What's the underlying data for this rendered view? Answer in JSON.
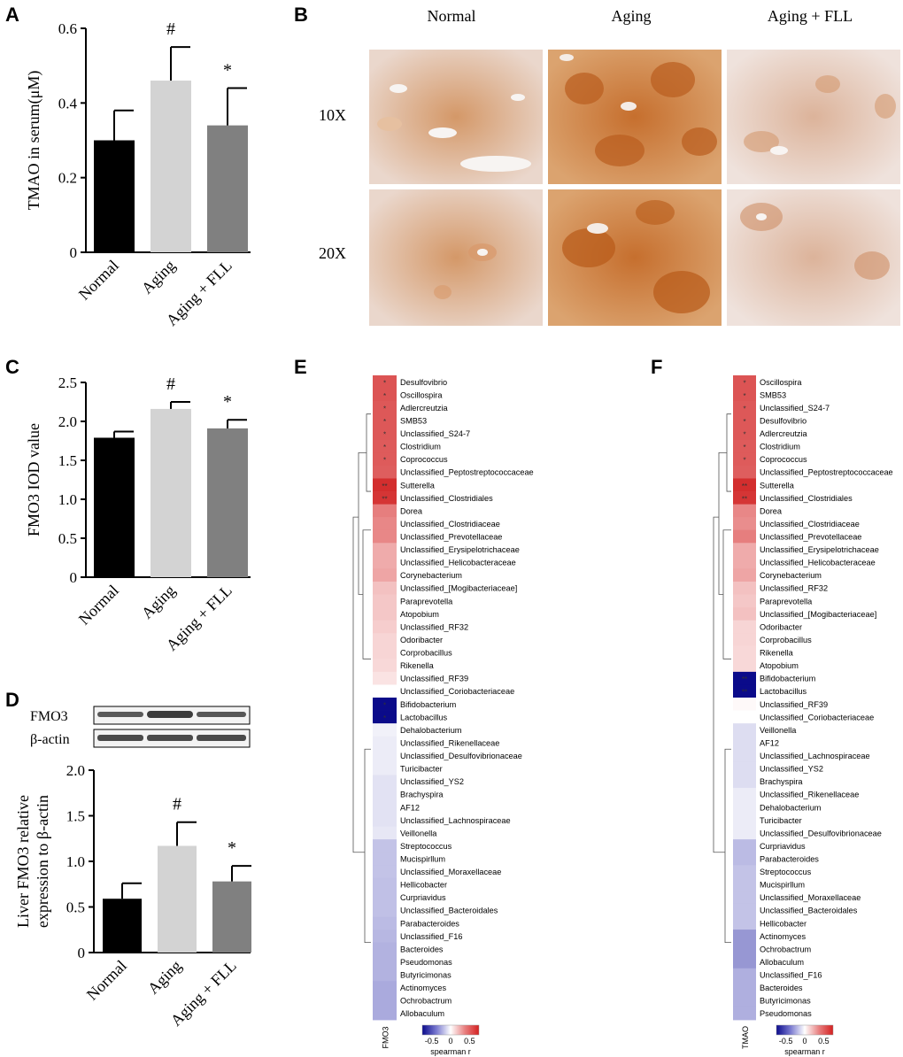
{
  "figure": {
    "panel_letters": {
      "a": "A",
      "b": "B",
      "c": "C",
      "d": "D",
      "e": "E",
      "f": "F"
    }
  },
  "groups": [
    "Normal",
    "Aging",
    "Aging + FLL"
  ],
  "colors": {
    "normal": "#000000",
    "aging": "#d3d3d3",
    "fll": "#808080"
  },
  "chart_data": [
    {
      "panel": "A",
      "type": "bar",
      "categories": [
        "Normal",
        "Aging",
        "Aging + FLL"
      ],
      "values": [
        0.3,
        0.46,
        0.34
      ],
      "errors": [
        0.08,
        0.09,
        0.1
      ],
      "annotations": [
        "",
        "#",
        "*"
      ],
      "title": "",
      "xlabel": "",
      "ylabel": "TMAO in serum(μM)",
      "ylim": [
        0,
        0.6
      ],
      "yticks": [
        0,
        0.2,
        0.4,
        0.6
      ],
      "ytick_labels": [
        "0",
        "0.2",
        "0.4",
        "0.6"
      ]
    },
    {
      "panel": "C",
      "type": "bar",
      "categories": [
        "Normal",
        "Aging",
        "Aging + FLL"
      ],
      "values": [
        1.79,
        2.16,
        1.91
      ],
      "errors": [
        0.08,
        0.09,
        0.11
      ],
      "annotations": [
        "",
        "#",
        "*"
      ],
      "title": "",
      "xlabel": "",
      "ylabel": "FMO3 IOD value",
      "ylim": [
        0,
        2.5
      ],
      "yticks": [
        0,
        0.5,
        1.0,
        1.5,
        2.0,
        2.5
      ],
      "ytick_labels": [
        "0",
        "0.5",
        "1.0",
        "1.5",
        "2.0",
        "2.5"
      ]
    },
    {
      "panel": "D",
      "type": "bar",
      "categories": [
        "Normal",
        "Aging",
        "Aging + FLL"
      ],
      "values": [
        0.59,
        1.17,
        0.78
      ],
      "errors": [
        0.17,
        0.26,
        0.17
      ],
      "annotations": [
        "",
        "#",
        "*"
      ],
      "title": "",
      "xlabel": "",
      "ylabel": "Liver FMO3 relative expression to β-actin",
      "ylabel_lines": [
        "Liver FMO3 relative",
        "expression to β-actin"
      ],
      "ylim": [
        0,
        2.0
      ],
      "yticks": [
        0,
        0.5,
        1.0,
        1.5,
        2.0
      ],
      "ytick_labels": [
        "0",
        "0.5",
        "1.0",
        "1.5",
        "2.0"
      ]
    },
    {
      "panel": "E",
      "type": "heatmap",
      "column_label": "FMO3",
      "colorbar": {
        "label": "spearman r",
        "ticks": [
          "-0.5",
          "0",
          "0.5"
        ],
        "range": [
          -0.75,
          0.75
        ]
      },
      "rows": [
        {
          "name": "Desulfovibrio",
          "r": 0.58,
          "sig": "*"
        },
        {
          "name": "Oscillospira",
          "r": 0.58,
          "sig": "*"
        },
        {
          "name": "Adlercreutzia",
          "r": 0.57,
          "sig": "*"
        },
        {
          "name": "SMB53",
          "r": 0.57,
          "sig": "*"
        },
        {
          "name": "Unclassified_S24-7",
          "r": 0.57,
          "sig": "*"
        },
        {
          "name": "Clostridium",
          "r": 0.56,
          "sig": "*"
        },
        {
          "name": "Coprococcus",
          "r": 0.56,
          "sig": "*"
        },
        {
          "name": "Unclassified_Peptostreptococcaceae",
          "r": 0.55,
          "sig": ""
        },
        {
          "name": "Sutterella",
          "r": 0.7,
          "sig": "**"
        },
        {
          "name": "Unclassified_Clostridiales",
          "r": 0.68,
          "sig": "**"
        },
        {
          "name": "Dorea",
          "r": 0.45,
          "sig": ""
        },
        {
          "name": "Unclassified_Clostridiaceae",
          "r": 0.42,
          "sig": ""
        },
        {
          "name": "Unclassified_Prevotellaceae",
          "r": 0.42,
          "sig": ""
        },
        {
          "name": "Unclassified_Erysipelotrichaceae",
          "r": 0.3,
          "sig": ""
        },
        {
          "name": "Unclassified_Helicobacteraceae",
          "r": 0.3,
          "sig": ""
        },
        {
          "name": "Corynebacterium",
          "r": 0.32,
          "sig": ""
        },
        {
          "name": "Unclassified_[Mogibacteriaceae]",
          "r": 0.22,
          "sig": ""
        },
        {
          "name": "Paraprevotella",
          "r": 0.2,
          "sig": ""
        },
        {
          "name": "Atopobium",
          "r": 0.2,
          "sig": ""
        },
        {
          "name": "Unclassified_RF32",
          "r": 0.18,
          "sig": ""
        },
        {
          "name": "Odoribacter",
          "r": 0.15,
          "sig": ""
        },
        {
          "name": "Corprobacillus",
          "r": 0.15,
          "sig": ""
        },
        {
          "name": "Rikenella",
          "r": 0.14,
          "sig": ""
        },
        {
          "name": "Unclassified_RF39",
          "r": 0.1,
          "sig": ""
        },
        {
          "name": "Unclassified_Coriobacteriaceae",
          "r": 0.0,
          "sig": ""
        },
        {
          "name": "Bifidobacterium",
          "r": -0.75,
          "sig": "*"
        },
        {
          "name": "Lactobacillus",
          "r": -0.75,
          "sig": "*"
        },
        {
          "name": "Dehalobacterium",
          "r": -0.06,
          "sig": ""
        },
        {
          "name": "Unclassified_Rikenellaceae",
          "r": -0.08,
          "sig": ""
        },
        {
          "name": "Unclassified_Desulfovibrionaceae",
          "r": -0.08,
          "sig": ""
        },
        {
          "name": "Turicibacter",
          "r": -0.08,
          "sig": ""
        },
        {
          "name": "Unclassified_YS2",
          "r": -0.12,
          "sig": ""
        },
        {
          "name": "Brachyspira",
          "r": -0.12,
          "sig": ""
        },
        {
          "name": "AF12",
          "r": -0.12,
          "sig": ""
        },
        {
          "name": "Unclassified_Lachnospiraceae",
          "r": -0.12,
          "sig": ""
        },
        {
          "name": "Veillonella",
          "r": -0.1,
          "sig": ""
        },
        {
          "name": "Streptococcus",
          "r": -0.25,
          "sig": ""
        },
        {
          "name": "Mucispirllum",
          "r": -0.25,
          "sig": ""
        },
        {
          "name": "Unclassified_Moraxellaceae",
          "r": -0.25,
          "sig": ""
        },
        {
          "name": "Hellicobacter",
          "r": -0.26,
          "sig": ""
        },
        {
          "name": "Curpriavidus",
          "r": -0.26,
          "sig": ""
        },
        {
          "name": "Unclassified_Bacteroidales",
          "r": -0.26,
          "sig": ""
        },
        {
          "name": "Parabacteroides",
          "r": -0.28,
          "sig": ""
        },
        {
          "name": "Unclassified_F16",
          "r": -0.3,
          "sig": ""
        },
        {
          "name": "Bacteroides",
          "r": -0.32,
          "sig": ""
        },
        {
          "name": "Pseudomonas",
          "r": -0.32,
          "sig": ""
        },
        {
          "name": "Butyricimonas",
          "r": -0.32,
          "sig": ""
        },
        {
          "name": "Actinomyces",
          "r": -0.35,
          "sig": ""
        },
        {
          "name": "Ochrobactrum",
          "r": -0.35,
          "sig": ""
        },
        {
          "name": "Allobaculum",
          "r": -0.35,
          "sig": ""
        }
      ]
    },
    {
      "panel": "F",
      "type": "heatmap",
      "column_label": "TMAO",
      "colorbar": {
        "label": "spearman r",
        "ticks": [
          "-0.5",
          "0",
          "0.5"
        ],
        "range": [
          -0.75,
          0.75
        ]
      },
      "rows": [
        {
          "name": "Oscillospira",
          "r": 0.58,
          "sig": "*"
        },
        {
          "name": "SMB53",
          "r": 0.58,
          "sig": "*"
        },
        {
          "name": "Unclassified_S24-7",
          "r": 0.57,
          "sig": "*"
        },
        {
          "name": "Desulfovibrio",
          "r": 0.57,
          "sig": "*"
        },
        {
          "name": "Adlercreutzia",
          "r": 0.57,
          "sig": "*"
        },
        {
          "name": "Clostridium",
          "r": 0.56,
          "sig": "*"
        },
        {
          "name": "Coprococcus",
          "r": 0.56,
          "sig": "*"
        },
        {
          "name": "Unclassified_Peptostreptococcaceae",
          "r": 0.55,
          "sig": ""
        },
        {
          "name": "Sutterella",
          "r": 0.7,
          "sig": "**"
        },
        {
          "name": "Unclassified_Clostridiales",
          "r": 0.68,
          "sig": "**"
        },
        {
          "name": "Dorea",
          "r": 0.42,
          "sig": ""
        },
        {
          "name": "Unclassified_Clostridiaceae",
          "r": 0.4,
          "sig": ""
        },
        {
          "name": "Unclassified_Prevotellaceae",
          "r": 0.45,
          "sig": ""
        },
        {
          "name": "Unclassified_Erysipelotrichaceae",
          "r": 0.3,
          "sig": ""
        },
        {
          "name": "Unclassified_Helicobacteraceae",
          "r": 0.3,
          "sig": ""
        },
        {
          "name": "Corynebacterium",
          "r": 0.32,
          "sig": ""
        },
        {
          "name": "Unclassified_RF32",
          "r": 0.22,
          "sig": ""
        },
        {
          "name": "Paraprevotella",
          "r": 0.2,
          "sig": ""
        },
        {
          "name": "Unclassified_[Mogibacteriaceae]",
          "r": 0.22,
          "sig": ""
        },
        {
          "name": "Odoribacter",
          "r": 0.15,
          "sig": ""
        },
        {
          "name": "Corprobacillus",
          "r": 0.15,
          "sig": ""
        },
        {
          "name": "Rikenella",
          "r": 0.14,
          "sig": ""
        },
        {
          "name": "Atopobium",
          "r": 0.14,
          "sig": ""
        },
        {
          "name": "Bifidobacterium",
          "r": -0.75,
          "sig": "**"
        },
        {
          "name": "Lactobacillus",
          "r": -0.75,
          "sig": "**"
        },
        {
          "name": "Unclassified_RF39",
          "r": 0.02,
          "sig": ""
        },
        {
          "name": "Unclassified_Coriobacteriaceae",
          "r": 0.0,
          "sig": ""
        },
        {
          "name": "Veillonella",
          "r": -0.14,
          "sig": ""
        },
        {
          "name": "AF12",
          "r": -0.14,
          "sig": ""
        },
        {
          "name": "Unclassified_Lachnospiraceae",
          "r": -0.14,
          "sig": ""
        },
        {
          "name": "Unclassified_YS2",
          "r": -0.14,
          "sig": ""
        },
        {
          "name": "Brachyspira",
          "r": -0.14,
          "sig": ""
        },
        {
          "name": "Unclassified_Rikenellaceae",
          "r": -0.08,
          "sig": ""
        },
        {
          "name": "Dehalobacterium",
          "r": -0.08,
          "sig": ""
        },
        {
          "name": "Turicibacter",
          "r": -0.08,
          "sig": ""
        },
        {
          "name": "Unclassified_Desulfovibrionaceae",
          "r": -0.08,
          "sig": ""
        },
        {
          "name": "Curpriavidus",
          "r": -0.28,
          "sig": ""
        },
        {
          "name": "Parabacteroides",
          "r": -0.28,
          "sig": ""
        },
        {
          "name": "Streptococcus",
          "r": -0.25,
          "sig": ""
        },
        {
          "name": "Mucispirllum",
          "r": -0.25,
          "sig": ""
        },
        {
          "name": "Unclassified_Moraxellaceae",
          "r": -0.25,
          "sig": ""
        },
        {
          "name": "Unclassified_Bacteroidales",
          "r": -0.25,
          "sig": ""
        },
        {
          "name": "Hellicobacter",
          "r": -0.25,
          "sig": ""
        },
        {
          "name": "Actinomyces",
          "r": -0.4,
          "sig": ""
        },
        {
          "name": "Ochrobactrum",
          "r": -0.4,
          "sig": ""
        },
        {
          "name": "Allobaculum",
          "r": -0.4,
          "sig": ""
        },
        {
          "name": "Unclassified_F16",
          "r": -0.33,
          "sig": ""
        },
        {
          "name": "Bacteroides",
          "r": -0.33,
          "sig": ""
        },
        {
          "name": "Butyricimonas",
          "r": -0.33,
          "sig": ""
        },
        {
          "name": "Pseudomonas",
          "r": -0.33,
          "sig": ""
        }
      ]
    }
  ],
  "panel_b": {
    "column_labels": [
      "Normal",
      "Aging",
      "Aging + FLL"
    ],
    "row_labels": [
      "10X",
      "20X"
    ]
  },
  "panel_d_blot": {
    "band_labels": [
      "FMO3",
      "β-actin"
    ]
  }
}
